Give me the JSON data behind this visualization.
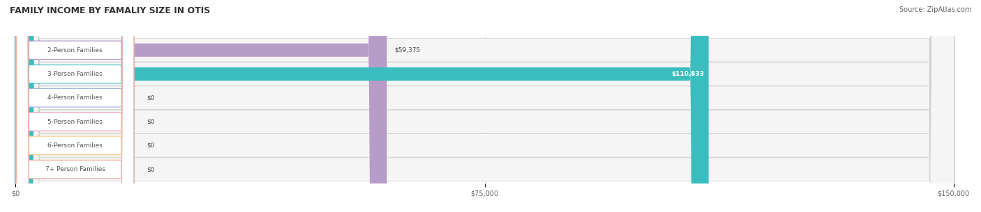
{
  "title": "FAMILY INCOME BY FAMALIY SIZE IN OTIS",
  "source": "Source: ZipAtlas.com",
  "categories": [
    "2-Person Families",
    "3-Person Families",
    "4-Person Families",
    "5-Person Families",
    "6-Person Families",
    "7+ Person Families"
  ],
  "values": [
    59375,
    110833,
    0,
    0,
    0,
    0
  ],
  "bar_colors": [
    "#b89cc8",
    "#3bbcbe",
    "#a8b4e0",
    "#f0a0b8",
    "#f5c888",
    "#f0b0a8"
  ],
  "bg_row_color": "#f0f0f0",
  "value_labels": [
    "$59,375",
    "$110,833",
    "$0",
    "$0",
    "$0",
    "$0"
  ],
  "xlim": [
    0,
    150000
  ],
  "xticks": [
    0,
    75000,
    150000
  ],
  "xtick_labels": [
    "$0",
    "$75,000",
    "$150,000"
  ],
  "label_inside_threshold": 110000,
  "figsize": [
    14.06,
    3.05
  ],
  "dpi": 100
}
